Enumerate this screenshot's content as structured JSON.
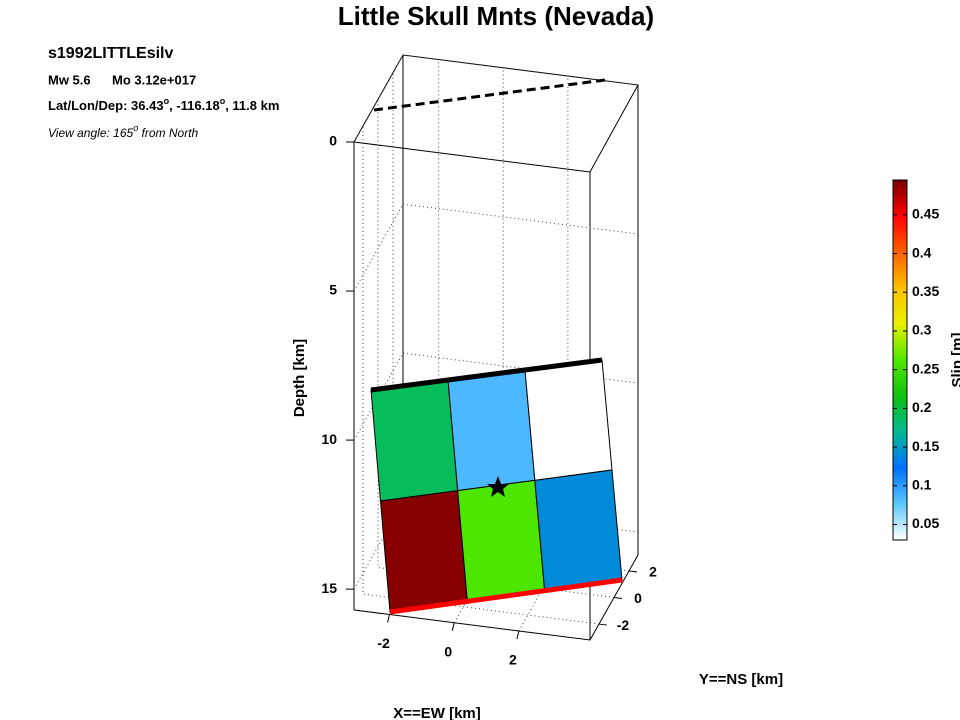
{
  "chart_data": {
    "type": "fault-slip",
    "title": "Little Skull Mnts (Nevada)",
    "event": "s1992LITTLEsilv",
    "magnitude": "Mw 5.6",
    "moment": "Mo 3.12e+017",
    "location_parts": [
      "Lat/Lon/Dep: 36.43",
      "o",
      ", -116.18",
      "o",
      ", 11.8 km"
    ],
    "view_parts": [
      "View angle: 165",
      "o",
      " from North"
    ],
    "zlabel": "Depth [km]",
    "xlabel": "X==EW [km]",
    "ylabel": "Y==NS [km]",
    "colorbar_label": "Slip [m]",
    "zlim": [
      0,
      15.7
    ],
    "zticks": [
      0,
      5,
      10,
      15
    ],
    "xlim": [
      -3.1,
      4.2
    ],
    "xticks": [
      -2,
      0,
      2
    ],
    "ylim": [
      -3.2,
      3.2
    ],
    "yticks": [
      2,
      0,
      -2
    ],
    "slip": [
      [
        0.19,
        0.085,
        0.03
      ],
      [
        0.49,
        0.26,
        0.14
      ]
    ],
    "clim": [
      0.03,
      0.495
    ],
    "colorbar_ticks": [
      0.05,
      0.1,
      0.15,
      0.2,
      0.25,
      0.3,
      0.35,
      0.4,
      0.45
    ],
    "colormap": [
      "#ffffff",
      "#5cc8ff",
      "#0070ff",
      "#00b894",
      "#10c010",
      "#50e800",
      "#e8f000",
      "#ffc000",
      "#ff6000",
      "#ff0000",
      "#780000"
    ],
    "grid": true
  }
}
